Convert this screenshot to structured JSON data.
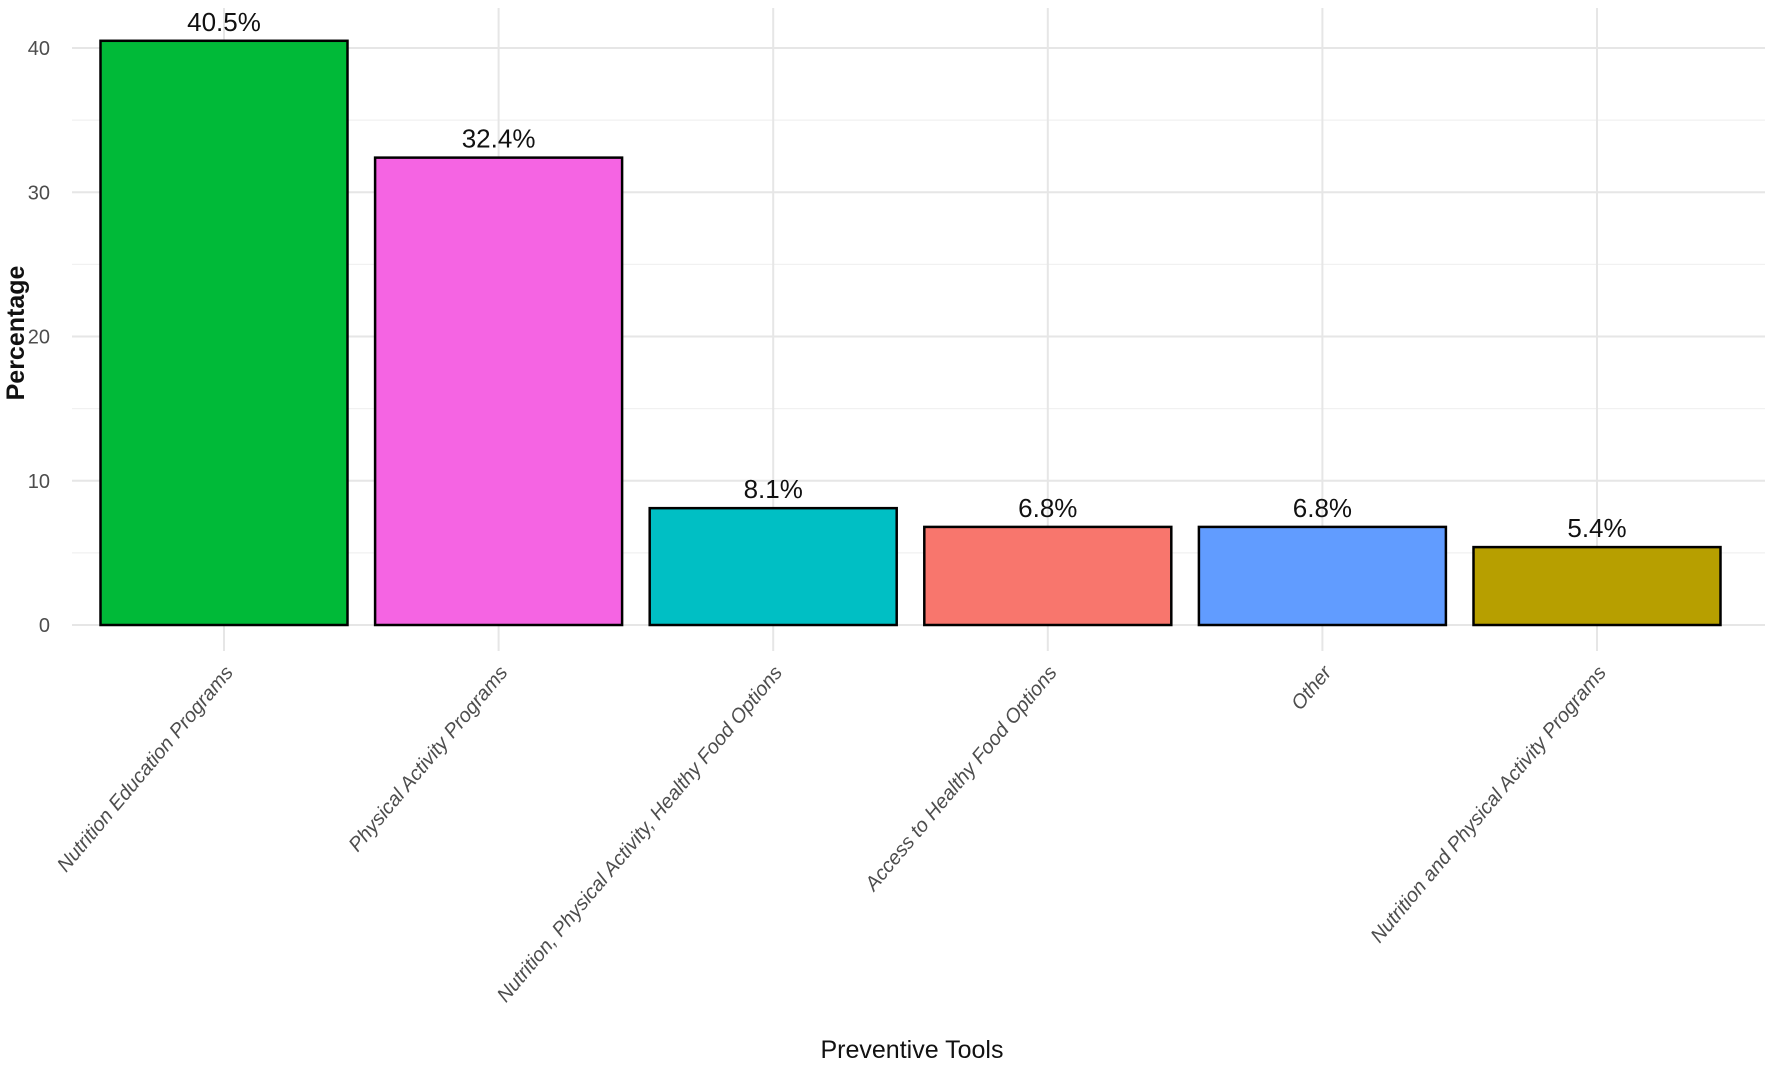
{
  "chart_data": {
    "type": "bar",
    "title": "",
    "xlabel": "Preventive Tools",
    "ylabel": "Percentage",
    "ylim": [
      0,
      42.5
    ],
    "yticks": [
      0,
      10,
      20,
      30,
      40
    ],
    "grid": true,
    "legend": "none",
    "categories": [
      "Nutrition Education Programs",
      "Physical Activity Programs",
      "Nutrition, Physical Activity, Healthy Food Options",
      "Access to Healthy Food Options",
      "Other",
      "Nutrition and Physical Activity Programs"
    ],
    "values": [
      40.5,
      32.4,
      8.1,
      6.8,
      6.8,
      5.4
    ],
    "labels": [
      "40.5%",
      "32.4%",
      "8.1%",
      "6.8%",
      "6.8%",
      "5.4%"
    ],
    "colors": [
      "#00BA38",
      "#F564E3",
      "#00BFC4",
      "#F8766D",
      "#619CFF",
      "#B79F00"
    ]
  }
}
